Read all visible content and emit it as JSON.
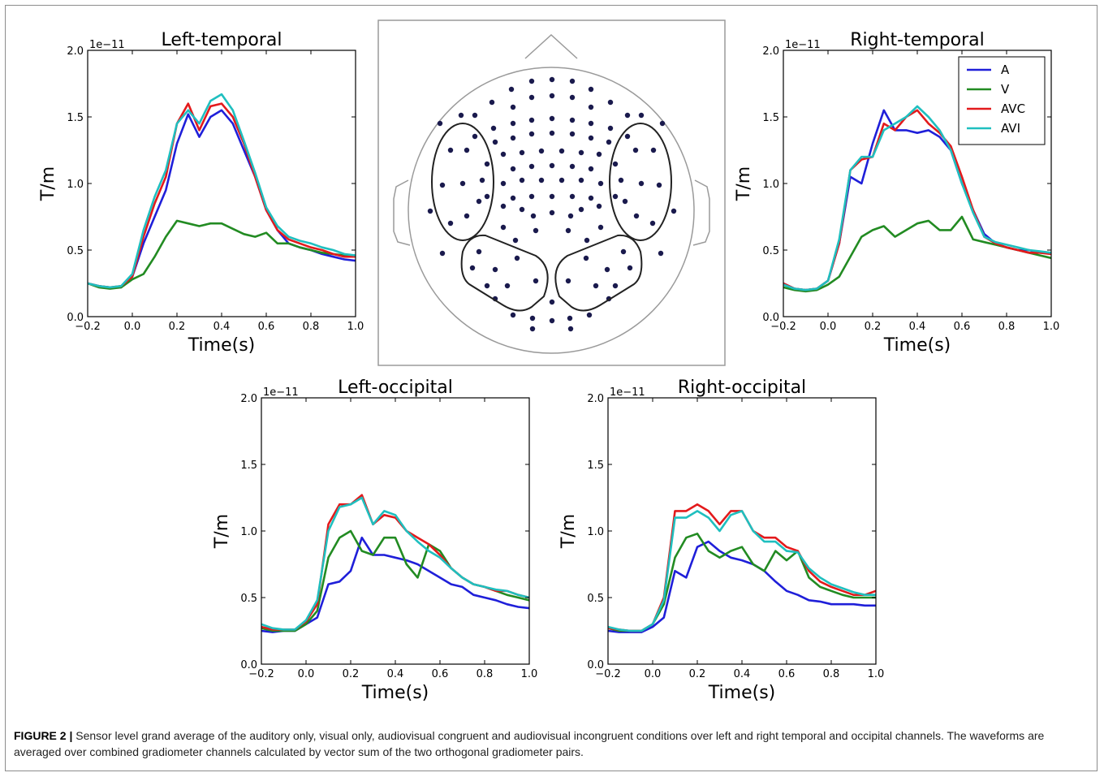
{
  "colors": {
    "A": "#1f1fd9",
    "V": "#228b22",
    "AVC": "#e31a1c",
    "AVI": "#1fbfbf"
  },
  "caption": {
    "label": "FIGURE 2 |",
    "text": " Sensor level grand average of the auditory only, visual only, audiovisual congruent and audiovisual incongruent conditions over left and right temporal and occipital channels. The waveforms are averaged over combined gradiometer channels calculated by vector sum of the two orthogonal gradiometer pairs."
  },
  "sensor_layout": {
    "description_icon": "head-sensor-map-icon"
  },
  "chart_data": [
    {
      "type": "line",
      "title": "Left-temporal",
      "xlabel": "Time(s)",
      "ylabel": "T/m",
      "y_exponent": "1e−11",
      "xlim": [
        -0.2,
        1.0
      ],
      "ylim": [
        0.0,
        2.0
      ],
      "xticks": [
        "−0.2",
        "0.0",
        "0.2",
        "0.4",
        "0.6",
        "0.8",
        "1.0"
      ],
      "yticks": [
        "0.0",
        "0.5",
        "1.0",
        "1.5",
        "2.0"
      ],
      "legend": false,
      "x": [
        -0.2,
        -0.15,
        -0.1,
        -0.05,
        0.0,
        0.05,
        0.1,
        0.15,
        0.2,
        0.25,
        0.3,
        0.35,
        0.4,
        0.45,
        0.5,
        0.55,
        0.6,
        0.65,
        0.7,
        0.75,
        0.8,
        0.85,
        0.9,
        0.95,
        1.0
      ],
      "series": [
        {
          "name": "A",
          "values": [
            0.25,
            0.23,
            0.22,
            0.22,
            0.3,
            0.55,
            0.75,
            0.95,
            1.3,
            1.52,
            1.35,
            1.5,
            1.55,
            1.45,
            1.25,
            1.05,
            0.8,
            0.65,
            0.55,
            0.52,
            0.5,
            0.47,
            0.45,
            0.43,
            0.42
          ]
        },
        {
          "name": "V",
          "values": [
            0.25,
            0.22,
            0.21,
            0.22,
            0.28,
            0.32,
            0.45,
            0.6,
            0.72,
            0.7,
            0.68,
            0.7,
            0.7,
            0.66,
            0.62,
            0.6,
            0.63,
            0.55,
            0.55,
            0.52,
            0.5,
            0.48,
            0.47,
            0.46,
            0.45
          ]
        },
        {
          "name": "AVC",
          "values": [
            0.25,
            0.23,
            0.22,
            0.23,
            0.3,
            0.6,
            0.85,
            1.05,
            1.45,
            1.6,
            1.4,
            1.58,
            1.6,
            1.5,
            1.3,
            1.05,
            0.8,
            0.65,
            0.58,
            0.55,
            0.52,
            0.5,
            0.47,
            0.45,
            0.45
          ]
        },
        {
          "name": "AVI",
          "values": [
            0.25,
            0.23,
            0.22,
            0.23,
            0.32,
            0.65,
            0.9,
            1.1,
            1.45,
            1.55,
            1.45,
            1.62,
            1.67,
            1.55,
            1.32,
            1.08,
            0.82,
            0.68,
            0.6,
            0.57,
            0.55,
            0.52,
            0.5,
            0.47,
            0.46
          ]
        }
      ]
    },
    {
      "type": "line",
      "title": "Right-temporal",
      "xlabel": "Time(s)",
      "ylabel": "T/m",
      "y_exponent": "1e−11",
      "xlim": [
        -0.2,
        1.0
      ],
      "ylim": [
        0.0,
        2.0
      ],
      "xticks": [
        "−0.2",
        "0.0",
        "0.2",
        "0.4",
        "0.6",
        "0.8",
        "1.0"
      ],
      "yticks": [
        "0.0",
        "0.5",
        "1.0",
        "1.5",
        "2.0"
      ],
      "legend": true,
      "legend_position": "top-right",
      "x": [
        -0.2,
        -0.15,
        -0.1,
        -0.05,
        0.0,
        0.05,
        0.1,
        0.15,
        0.2,
        0.25,
        0.3,
        0.35,
        0.4,
        0.45,
        0.5,
        0.55,
        0.6,
        0.65,
        0.7,
        0.75,
        0.8,
        0.85,
        0.9,
        0.95,
        1.0
      ],
      "series": [
        {
          "name": "A",
          "values": [
            0.25,
            0.21,
            0.2,
            0.21,
            0.27,
            0.55,
            1.05,
            1.0,
            1.3,
            1.55,
            1.4,
            1.4,
            1.38,
            1.4,
            1.35,
            1.25,
            1.0,
            0.8,
            0.62,
            0.55,
            0.52,
            0.5,
            0.5,
            0.48,
            0.48
          ]
        },
        {
          "name": "V",
          "values": [
            0.22,
            0.2,
            0.19,
            0.2,
            0.24,
            0.3,
            0.45,
            0.6,
            0.65,
            0.68,
            0.6,
            0.65,
            0.7,
            0.72,
            0.65,
            0.65,
            0.75,
            0.58,
            0.56,
            0.54,
            0.52,
            0.5,
            0.48,
            0.46,
            0.44
          ]
        },
        {
          "name": "AVC",
          "values": [
            0.25,
            0.21,
            0.2,
            0.21,
            0.27,
            0.55,
            1.1,
            1.18,
            1.2,
            1.45,
            1.4,
            1.5,
            1.55,
            1.45,
            1.38,
            1.28,
            1.05,
            0.8,
            0.6,
            0.55,
            0.52,
            0.5,
            0.48,
            0.48,
            0.47
          ]
        },
        {
          "name": "AVI",
          "values": [
            0.24,
            0.21,
            0.2,
            0.21,
            0.27,
            0.58,
            1.1,
            1.2,
            1.2,
            1.4,
            1.45,
            1.5,
            1.58,
            1.5,
            1.4,
            1.25,
            1.0,
            0.78,
            0.6,
            0.56,
            0.54,
            0.52,
            0.5,
            0.49,
            0.48
          ]
        }
      ]
    },
    {
      "type": "line",
      "title": "Left-occipital",
      "xlabel": "Time(s)",
      "ylabel": "T/m",
      "y_exponent": "1e−11",
      "xlim": [
        -0.2,
        1.0
      ],
      "ylim": [
        0.0,
        2.0
      ],
      "xticks": [
        "−0.2",
        "0.0",
        "0.2",
        "0.4",
        "0.6",
        "0.8",
        "1.0"
      ],
      "yticks": [
        "0.0",
        "0.5",
        "1.0",
        "1.5",
        "2.0"
      ],
      "legend": false,
      "x": [
        -0.2,
        -0.15,
        -0.1,
        -0.05,
        0.0,
        0.05,
        0.1,
        0.15,
        0.2,
        0.25,
        0.3,
        0.35,
        0.4,
        0.45,
        0.5,
        0.55,
        0.6,
        0.65,
        0.7,
        0.75,
        0.8,
        0.85,
        0.9,
        0.95,
        1.0
      ],
      "series": [
        {
          "name": "A",
          "values": [
            0.25,
            0.24,
            0.25,
            0.25,
            0.3,
            0.35,
            0.6,
            0.62,
            0.7,
            0.95,
            0.82,
            0.82,
            0.8,
            0.78,
            0.75,
            0.7,
            0.65,
            0.6,
            0.58,
            0.52,
            0.5,
            0.48,
            0.45,
            0.43,
            0.42
          ]
        },
        {
          "name": "V",
          "values": [
            0.27,
            0.25,
            0.25,
            0.25,
            0.3,
            0.4,
            0.8,
            0.95,
            1.0,
            0.85,
            0.82,
            0.95,
            0.95,
            0.75,
            0.65,
            0.9,
            0.85,
            0.72,
            0.65,
            0.6,
            0.58,
            0.55,
            0.52,
            0.5,
            0.48
          ]
        },
        {
          "name": "AVC",
          "values": [
            0.28,
            0.26,
            0.26,
            0.26,
            0.32,
            0.45,
            1.05,
            1.2,
            1.2,
            1.27,
            1.05,
            1.12,
            1.1,
            1.0,
            0.95,
            0.9,
            0.82,
            0.72,
            0.65,
            0.6,
            0.58,
            0.55,
            0.55,
            0.52,
            0.5
          ]
        },
        {
          "name": "AVI",
          "values": [
            0.3,
            0.27,
            0.26,
            0.26,
            0.33,
            0.48,
            1.0,
            1.18,
            1.2,
            1.25,
            1.05,
            1.15,
            1.12,
            1.0,
            0.92,
            0.85,
            0.8,
            0.72,
            0.65,
            0.6,
            0.58,
            0.56,
            0.55,
            0.52,
            0.5
          ]
        }
      ]
    },
    {
      "type": "line",
      "title": "Right-occipital",
      "xlabel": "Time(s)",
      "ylabel": "T/m",
      "y_exponent": "1e−11",
      "xlim": [
        -0.2,
        1.0
      ],
      "ylim": [
        0.0,
        2.0
      ],
      "xticks": [
        "−0.2",
        "0.0",
        "0.2",
        "0.4",
        "0.6",
        "0.8",
        "1.0"
      ],
      "yticks": [
        "0.0",
        "0.5",
        "1.0",
        "1.5",
        "2.0"
      ],
      "legend": false,
      "x": [
        -0.2,
        -0.15,
        -0.1,
        -0.05,
        0.0,
        0.05,
        0.1,
        0.15,
        0.2,
        0.25,
        0.3,
        0.35,
        0.4,
        0.45,
        0.5,
        0.55,
        0.6,
        0.65,
        0.7,
        0.75,
        0.8,
        0.85,
        0.9,
        0.95,
        1.0
      ],
      "series": [
        {
          "name": "A",
          "values": [
            0.25,
            0.24,
            0.24,
            0.24,
            0.28,
            0.35,
            0.7,
            0.65,
            0.88,
            0.92,
            0.85,
            0.8,
            0.78,
            0.75,
            0.7,
            0.62,
            0.55,
            0.52,
            0.48,
            0.47,
            0.45,
            0.45,
            0.45,
            0.44,
            0.44
          ]
        },
        {
          "name": "V",
          "values": [
            0.27,
            0.25,
            0.25,
            0.25,
            0.3,
            0.45,
            0.8,
            0.95,
            0.98,
            0.85,
            0.8,
            0.85,
            0.88,
            0.75,
            0.7,
            0.85,
            0.78,
            0.85,
            0.65,
            0.58,
            0.55,
            0.52,
            0.5,
            0.5,
            0.5
          ]
        },
        {
          "name": "AVC",
          "values": [
            0.27,
            0.26,
            0.25,
            0.25,
            0.3,
            0.5,
            1.15,
            1.15,
            1.2,
            1.15,
            1.05,
            1.15,
            1.15,
            1.0,
            0.95,
            0.95,
            0.88,
            0.85,
            0.7,
            0.62,
            0.58,
            0.55,
            0.52,
            0.52,
            0.55
          ]
        },
        {
          "name": "AVI",
          "values": [
            0.28,
            0.26,
            0.25,
            0.25,
            0.3,
            0.48,
            1.1,
            1.1,
            1.15,
            1.1,
            1.0,
            1.12,
            1.15,
            1.0,
            0.92,
            0.92,
            0.85,
            0.84,
            0.72,
            0.65,
            0.6,
            0.57,
            0.54,
            0.52,
            0.52
          ]
        }
      ]
    }
  ]
}
